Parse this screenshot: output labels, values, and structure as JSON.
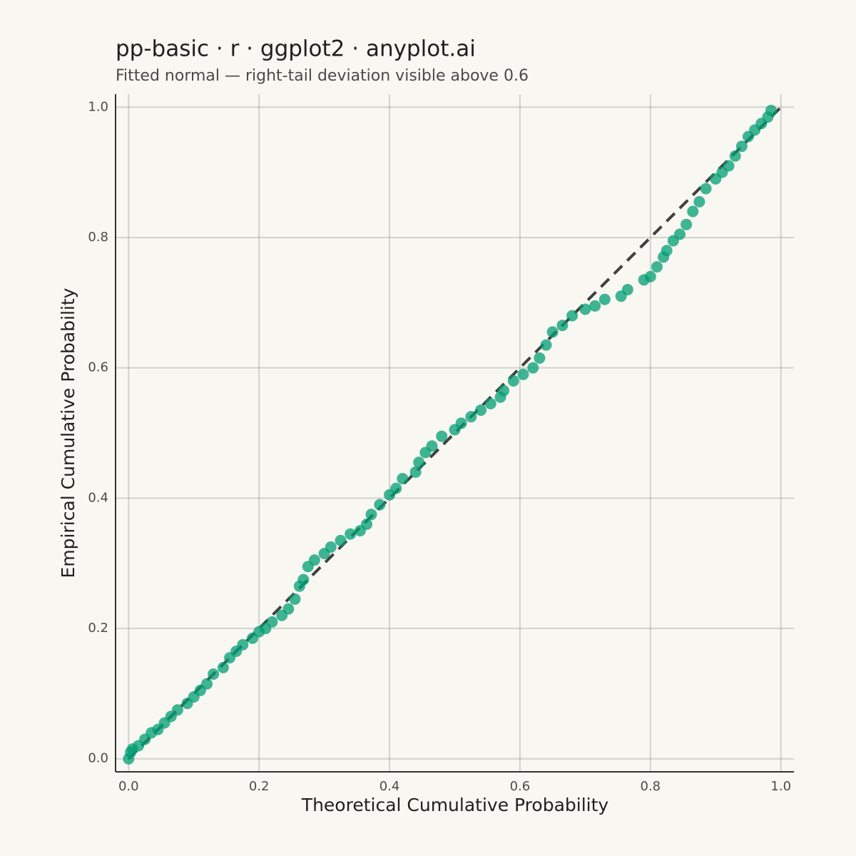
{
  "chart_data": {
    "type": "scatter",
    "title": "pp-basic · r · ggplot2 · anyplot.ai",
    "subtitle": "Fitted normal — right-tail deviation visible above 0.6",
    "x_label": "Theoretical Cumulative Probability",
    "y_label": "Empirical Cumulative Probability",
    "color": "#009E73",
    "reference_line": {
      "x": [
        0,
        1
      ],
      "y": [
        0,
        1
      ],
      "color": "#404040"
    },
    "grid": true,
    "xlim": [
      -0.02,
      1.02
    ],
    "ylim": [
      -0.02,
      1.02
    ],
    "xticks": [
      {
        "value": 0,
        "label": "0.0"
      },
      0.2,
      0.4,
      0.6,
      0.8,
      {
        "value": 1,
        "label": "1.0"
      }
    ],
    "yticks": [
      {
        "value": 0,
        "label": "0.0"
      },
      0.2,
      0.4,
      0.6,
      0.8,
      {
        "value": 1,
        "label": "1.0"
      }
    ],
    "x": [
      0,
      0.003,
      0.006,
      0.015,
      0.025,
      0.035,
      0.045,
      0.055,
      0.065,
      0.075,
      0.09,
      0.1,
      0.11,
      0.12,
      0.13,
      0.145,
      0.155,
      0.165,
      0.175,
      0.19,
      0.2,
      0.21,
      0.22,
      0.235,
      0.245,
      0.255,
      0.262,
      0.268,
      0.275,
      0.285,
      0.3,
      0.31,
      0.325,
      0.34,
      0.355,
      0.365,
      0.372,
      0.385,
      0.4,
      0.41,
      0.42,
      0.44,
      0.445,
      0.455,
      0.465,
      0.48,
      0.5,
      0.51,
      0.525,
      0.54,
      0.555,
      0.57,
      0.575,
      0.59,
      0.605,
      0.62,
      0.63,
      0.64,
      0.65,
      0.665,
      0.68,
      0.7,
      0.715,
      0.73,
      0.755,
      0.765,
      0.79,
      0.8,
      0.81,
      0.82,
      0.825,
      0.835,
      0.845,
      0.855,
      0.865,
      0.875,
      0.885,
      0.9,
      0.91,
      0.92,
      0.93,
      0.94,
      0.95,
      0.96,
      0.97,
      0.98,
      0.985
    ],
    "values": [
      0,
      0.01,
      0.015,
      0.02,
      0.03,
      0.04,
      0.045,
      0.055,
      0.065,
      0.075,
      0.085,
      0.095,
      0.105,
      0.115,
      0.13,
      0.14,
      0.155,
      0.165,
      0.175,
      0.185,
      0.195,
      0.2,
      0.21,
      0.22,
      0.23,
      0.245,
      0.265,
      0.275,
      0.295,
      0.305,
      0.315,
      0.325,
      0.335,
      0.345,
      0.35,
      0.36,
      0.375,
      0.39,
      0.405,
      0.415,
      0.43,
      0.44,
      0.455,
      0.47,
      0.48,
      0.495,
      0.505,
      0.515,
      0.525,
      0.535,
      0.545,
      0.555,
      0.565,
      0.58,
      0.59,
      0.6,
      0.615,
      0.635,
      0.655,
      0.665,
      0.68,
      0.69,
      0.695,
      0.705,
      0.71,
      0.72,
      0.735,
      0.74,
      0.755,
      0.77,
      0.78,
      0.795,
      0.805,
      0.82,
      0.84,
      0.855,
      0.875,
      0.89,
      0.9,
      0.91,
      0.925,
      0.94,
      0.955,
      0.965,
      0.975,
      0.985,
      0.995
    ]
  }
}
